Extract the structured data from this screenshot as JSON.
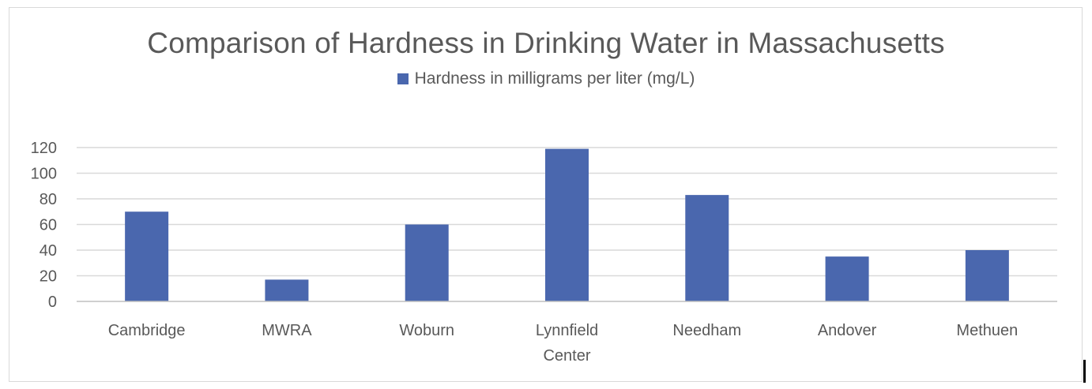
{
  "chart_data": {
    "type": "bar",
    "title": "Comparison of Hardness in Drinking Water in Massachusetts",
    "categories": [
      "Cambridge",
      "MWRA",
      "Woburn",
      "Lynnfield Center",
      "Needham",
      "Andover",
      "Methuen"
    ],
    "category_lines": [
      [
        "Cambridge"
      ],
      [
        "MWRA"
      ],
      [
        "Woburn"
      ],
      [
        "Lynnfield",
        "Center"
      ],
      [
        "Needham"
      ],
      [
        "Andover"
      ],
      [
        "Methuen"
      ]
    ],
    "series": [
      {
        "name": "Hardness in milligrams per liter (mg/L)",
        "values": [
          70,
          17,
          60,
          119,
          83,
          35,
          40
        ],
        "color": "#4a67ae"
      }
    ],
    "yticks": [
      0,
      20,
      40,
      60,
      80,
      100,
      120
    ],
    "ylim": [
      0,
      120
    ],
    "xlabel": "",
    "ylabel": "",
    "grid": true,
    "legend_position": "top"
  }
}
